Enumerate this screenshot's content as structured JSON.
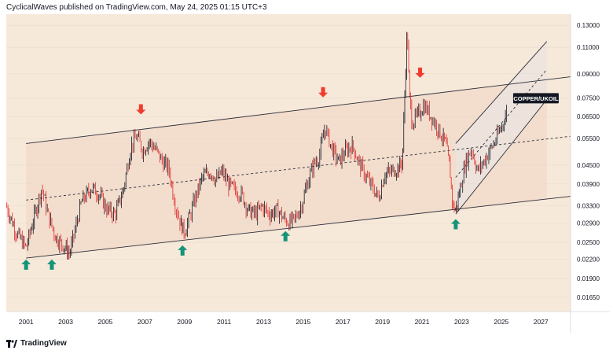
{
  "header": {
    "publisher": "CyclicalWaves published on TradingView.com, May 24, 2025 01:15 UTC+3"
  },
  "footer": {
    "brand": "TradingView"
  },
  "colors": {
    "background": "#f7e9d9",
    "channel_fill": "#f2dccb",
    "candle_up": "#131722",
    "candle_down": "#e02b2b",
    "arrow_up": "#15937a",
    "arrow_down": "#f23b2f",
    "line": "#2a2e39"
  },
  "chart_data": {
    "type": "line",
    "symbol_label": "COPPER/UKOIL",
    "y_scale": "log",
    "y_ticks": [
      "0.13000",
      "0.11000",
      "0.09000",
      "0.07500",
      "0.06500",
      "0.05500",
      "0.04500",
      "0.03900",
      "0.03300",
      "0.02900",
      "0.02500",
      "0.02200",
      "0.01900",
      "0.01650"
    ],
    "x_ticks": [
      "2001",
      "2003",
      "2005",
      "2007",
      "2009",
      "2011",
      "2013",
      "2015",
      "2017",
      "2019",
      "2021",
      "2023",
      "2025",
      "2027"
    ],
    "xlim": [
      2000.0,
      2028.5
    ],
    "ylim": [
      0.0148,
      0.1415
    ],
    "series": [
      {
        "values": [
          [
            2000.0,
            0.033
          ],
          [
            2000.5,
            0.027
          ],
          [
            2001.0,
            0.024
          ],
          [
            2001.5,
            0.032
          ],
          [
            2001.8,
            0.038
          ],
          [
            2002.1,
            0.031
          ],
          [
            2002.5,
            0.026
          ],
          [
            2003.0,
            0.024
          ],
          [
            2003.2,
            0.023
          ],
          [
            2003.5,
            0.028
          ],
          [
            2003.8,
            0.034
          ],
          [
            2004.3,
            0.038
          ],
          [
            2004.7,
            0.036
          ],
          [
            2005.1,
            0.032
          ],
          [
            2005.5,
            0.031
          ],
          [
            2005.9,
            0.037
          ],
          [
            2006.3,
            0.052
          ],
          [
            2006.6,
            0.056
          ],
          [
            2006.9,
            0.05
          ],
          [
            2007.2,
            0.054
          ],
          [
            2007.6,
            0.05
          ],
          [
            2007.9,
            0.046
          ],
          [
            2008.2,
            0.044
          ],
          [
            2008.5,
            0.034
          ],
          [
            2008.8,
            0.029
          ],
          [
            2009.0,
            0.027
          ],
          [
            2009.3,
            0.031
          ],
          [
            2009.6,
            0.036
          ],
          [
            2009.9,
            0.041
          ],
          [
            2010.3,
            0.043
          ],
          [
            2010.6,
            0.04
          ],
          [
            2010.9,
            0.043
          ],
          [
            2011.2,
            0.039
          ],
          [
            2011.6,
            0.037
          ],
          [
            2011.9,
            0.036
          ],
          [
            2012.2,
            0.032
          ],
          [
            2012.6,
            0.031
          ],
          [
            2012.9,
            0.033
          ],
          [
            2013.3,
            0.031
          ],
          [
            2013.7,
            0.032
          ],
          [
            2014.0,
            0.03
          ],
          [
            2014.3,
            0.029
          ],
          [
            2014.6,
            0.03
          ],
          [
            2014.9,
            0.033
          ],
          [
            2015.2,
            0.039
          ],
          [
            2015.5,
            0.045
          ],
          [
            2015.8,
            0.048
          ],
          [
            2016.1,
            0.06
          ],
          [
            2016.4,
            0.052
          ],
          [
            2016.8,
            0.046
          ],
          [
            2017.1,
            0.05
          ],
          [
            2017.5,
            0.052
          ],
          [
            2017.8,
            0.046
          ],
          [
            2018.1,
            0.042
          ],
          [
            2018.5,
            0.038
          ],
          [
            2018.8,
            0.035
          ],
          [
            2019.1,
            0.042
          ],
          [
            2019.5,
            0.043
          ],
          [
            2019.8,
            0.044
          ],
          [
            2020.0,
            0.046
          ],
          [
            2020.15,
            0.085
          ],
          [
            2020.25,
            0.13
          ],
          [
            2020.35,
            0.078
          ],
          [
            2020.5,
            0.062
          ],
          [
            2020.8,
            0.066
          ],
          [
            2021.1,
            0.071
          ],
          [
            2021.4,
            0.066
          ],
          [
            2021.7,
            0.061
          ],
          [
            2022.0,
            0.056
          ],
          [
            2022.2,
            0.053
          ],
          [
            2022.4,
            0.044
          ],
          [
            2022.55,
            0.033
          ],
          [
            2022.7,
            0.032
          ],
          [
            2022.9,
            0.037
          ],
          [
            2023.2,
            0.046
          ],
          [
            2023.5,
            0.051
          ],
          [
            2023.8,
            0.043
          ],
          [
            2024.1,
            0.046
          ],
          [
            2024.4,
            0.05
          ],
          [
            2024.7,
            0.054
          ],
          [
            2025.0,
            0.06
          ],
          [
            2025.3,
            0.068
          ]
        ]
      }
    ],
    "annotations": {
      "arrows_up": [
        [
          2001.0,
          0.0212
        ],
        [
          2002.3,
          0.0212
        ],
        [
          2008.9,
          0.0236
        ],
        [
          2014.1,
          0.0263
        ],
        [
          2022.7,
          0.0288
        ]
      ],
      "arrows_down": [
        [
          2006.8,
          0.0685
        ],
        [
          2016.0,
          0.078
        ],
        [
          2020.9,
          0.0905
        ]
      ],
      "main_channel": {
        "lower": [
          [
            2001.0,
            0.0222
          ],
          [
            2028.5,
            0.0355
          ]
        ],
        "upper": [
          [
            2001.0,
            0.053
          ],
          [
            2028.5,
            0.088
          ]
        ],
        "mid": [
          [
            2001.0,
            0.0345
          ],
          [
            2028.5,
            0.056
          ]
        ]
      },
      "rising_channel": {
        "lower": [
          [
            2022.7,
            0.031
          ],
          [
            2027.3,
            0.074
          ]
        ],
        "upper": [
          [
            2022.7,
            0.053
          ],
          [
            2027.3,
            0.115
          ]
        ],
        "mid": [
          [
            2022.7,
            0.041
          ],
          [
            2027.3,
            0.093
          ]
        ]
      },
      "zone_until": 2027.3
    }
  }
}
